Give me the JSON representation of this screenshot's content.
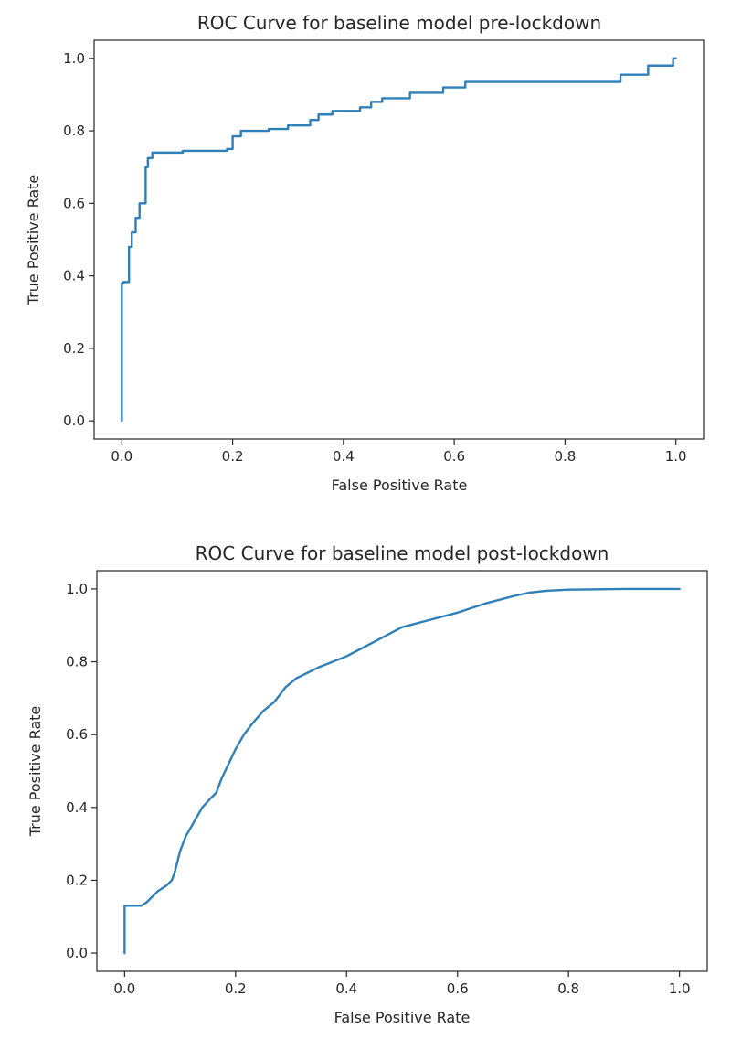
{
  "chart_data": [
    {
      "type": "line",
      "title": "ROC Curve for baseline model pre-lockdown",
      "xlabel": "False Positive Rate",
      "ylabel": "True Positive Rate",
      "xlim": [
        -0.05,
        1.05
      ],
      "ylim": [
        -0.05,
        1.05
      ],
      "xticks": [
        0.0,
        0.2,
        0.4,
        0.6,
        0.8,
        1.0
      ],
      "xtick_labels": [
        "0.0",
        "0.2",
        "0.4",
        "0.6",
        "0.8",
        "1.0"
      ],
      "yticks": [
        0.0,
        0.2,
        0.4,
        0.6,
        0.8,
        1.0
      ],
      "ytick_labels": [
        "0.0",
        "0.2",
        "0.4",
        "0.6",
        "0.8",
        "1.0"
      ],
      "grid": false,
      "color": "#2f7fb8",
      "series": [
        {
          "x": [
            0.0,
            0.0,
            0.003,
            0.003,
            0.013,
            0.013,
            0.018,
            0.018,
            0.025,
            0.025,
            0.032,
            0.032,
            0.043,
            0.043,
            0.047,
            0.047,
            0.055,
            0.055,
            0.11,
            0.11,
            0.19,
            0.19,
            0.2,
            0.2,
            0.215,
            0.215,
            0.265,
            0.265,
            0.3,
            0.3,
            0.34,
            0.34,
            0.355,
            0.355,
            0.38,
            0.38,
            0.43,
            0.43,
            0.45,
            0.45,
            0.47,
            0.47,
            0.52,
            0.52,
            0.58,
            0.58,
            0.62,
            0.62,
            0.9,
            0.9,
            0.95,
            0.95,
            0.995,
            0.995,
            1.0
          ],
          "y": [
            0.0,
            0.38,
            0.38,
            0.383,
            0.383,
            0.48,
            0.48,
            0.52,
            0.52,
            0.56,
            0.56,
            0.6,
            0.6,
            0.7,
            0.7,
            0.725,
            0.725,
            0.74,
            0.74,
            0.745,
            0.745,
            0.75,
            0.75,
            0.785,
            0.785,
            0.8,
            0.8,
            0.805,
            0.805,
            0.815,
            0.815,
            0.83,
            0.83,
            0.845,
            0.845,
            0.855,
            0.855,
            0.865,
            0.865,
            0.88,
            0.88,
            0.89,
            0.89,
            0.905,
            0.905,
            0.92,
            0.92,
            0.935,
            0.935,
            0.955,
            0.955,
            0.98,
            0.98,
            1.0,
            1.0
          ]
        }
      ]
    },
    {
      "type": "line",
      "title": "ROC Curve for baseline model post-lockdown",
      "xlabel": "False Positive Rate",
      "ylabel": "True Positive Rate",
      "xlim": [
        -0.05,
        1.05
      ],
      "ylim": [
        -0.05,
        1.05
      ],
      "xticks": [
        0.0,
        0.2,
        0.4,
        0.6,
        0.8,
        1.0
      ],
      "xtick_labels": [
        "0.0",
        "0.2",
        "0.4",
        "0.6",
        "0.8",
        "1.0"
      ],
      "yticks": [
        0.0,
        0.2,
        0.4,
        0.6,
        0.8,
        1.0
      ],
      "ytick_labels": [
        "0.0",
        "0.2",
        "0.4",
        "0.6",
        "0.8",
        "1.0"
      ],
      "grid": false,
      "color": "#2f7fb8",
      "series": [
        {
          "x": [
            0.0,
            0.0,
            0.005,
            0.03,
            0.04,
            0.05,
            0.06,
            0.075,
            0.085,
            0.09,
            0.1,
            0.11,
            0.125,
            0.14,
            0.155,
            0.165,
            0.175,
            0.2,
            0.215,
            0.23,
            0.25,
            0.27,
            0.29,
            0.31,
            0.35,
            0.4,
            0.45,
            0.5,
            0.55,
            0.6,
            0.65,
            0.7,
            0.73,
            0.76,
            0.8,
            0.9,
            1.0
          ],
          "y": [
            0.0,
            0.13,
            0.13,
            0.13,
            0.14,
            0.155,
            0.17,
            0.185,
            0.2,
            0.22,
            0.28,
            0.32,
            0.36,
            0.4,
            0.425,
            0.44,
            0.48,
            0.56,
            0.6,
            0.63,
            0.665,
            0.69,
            0.73,
            0.755,
            0.785,
            0.815,
            0.855,
            0.895,
            0.915,
            0.935,
            0.96,
            0.98,
            0.99,
            0.995,
            0.998,
            1.0,
            1.0
          ]
        }
      ]
    }
  ]
}
